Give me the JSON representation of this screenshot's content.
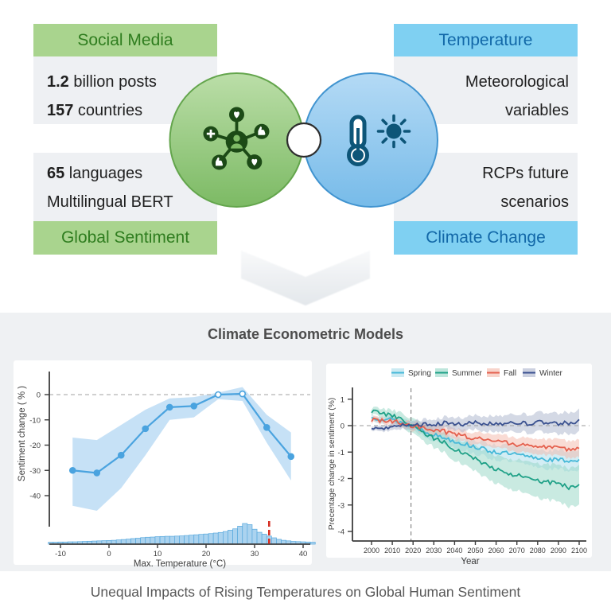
{
  "top": {
    "left": {
      "header": "Social Media",
      "footer": "Global Sentiment",
      "accent_bg": "#a9d48e",
      "accent_text": "#2f7d1f",
      "stats_box1": [
        {
          "strong": "1.2",
          "rest": " billion posts"
        },
        {
          "strong": "157",
          "rest": " countries"
        }
      ],
      "stats_box2": [
        {
          "strong": "65",
          "rest": " languages"
        },
        {
          "strong": "",
          "rest": "Multilingual BERT"
        }
      ],
      "icon": "social-network-icon"
    },
    "right": {
      "header": "Temperature",
      "footer": "Climate Change",
      "accent_bg": "#7fd0f2",
      "accent_text": "#1268a8",
      "stats_box1": [
        "Meteorological",
        "variables"
      ],
      "stats_box2": [
        "RCPs future",
        "scenarios"
      ],
      "icon": "thermometer-sun-icon"
    }
  },
  "models": {
    "title": "Climate Econometric Models"
  },
  "caption": {
    "text": "Unequal Impacts of Rising Temperatures on Global Human Sentiment"
  },
  "chart_data": [
    {
      "type": "line",
      "name": "sentiment-vs-temperature",
      "xlabel": "Max. Temperature (°C)",
      "ylabel": "Sentiment change ( % )",
      "x": [
        -7.5,
        -2.5,
        2.5,
        7.5,
        12.5,
        17.5,
        22.5,
        27.5,
        32.5,
        37.5
      ],
      "values": [
        -30,
        -31,
        -24,
        -13.5,
        -5,
        -4.5,
        0,
        0.3,
        -13,
        -24.5
      ],
      "band_upper": [
        -17,
        -18,
        -12,
        -6,
        -1.5,
        -1,
        0.8,
        3,
        -8,
        -15
      ],
      "band_lower": [
        -44,
        -46,
        -37,
        -24,
        -10,
        -9,
        -1.8,
        -2.5,
        -19,
        -34
      ],
      "open_marker_x": [
        22.5,
        27.5
      ],
      "xticks": [
        -10,
        0,
        10,
        20,
        30,
        40
      ],
      "yticks": [
        0,
        -10,
        -20,
        -30,
        -40
      ],
      "xlim": [
        -12.5,
        42.5
      ],
      "reference_line_y": 0,
      "threshold_line_x": 33,
      "histogram": {
        "x0": -12,
        "bin_width": 1,
        "heights": [
          0.02,
          0.02,
          0.03,
          0.03,
          0.04,
          0.04,
          0.05,
          0.06,
          0.07,
          0.08,
          0.09,
          0.1,
          0.11,
          0.12,
          0.14,
          0.16,
          0.18,
          0.21,
          0.23,
          0.26,
          0.28,
          0.29,
          0.31,
          0.32,
          0.33,
          0.33,
          0.34,
          0.35,
          0.37,
          0.39,
          0.41,
          0.43,
          0.45,
          0.47,
          0.5,
          0.53,
          0.58,
          0.65,
          0.72,
          0.86,
          1.0,
          0.94,
          0.7,
          0.54,
          0.44,
          0.34,
          0.25,
          0.17,
          0.12,
          0.09,
          0.06,
          0.05,
          0.04,
          0.03,
          0.02
        ]
      },
      "colors": {
        "line": "#4aa3df",
        "band": "#bcdcf4",
        "hist_fill": "#abd3ef",
        "hist_stroke": "#57a8dd",
        "threshold": "#d62f23"
      }
    },
    {
      "type": "line",
      "name": "seasonal-sentiment-projection",
      "xlabel": "Year",
      "ylabel": "Precentage change in sentiment (%)",
      "x_anchors": [
        2000,
        2005,
        2010,
        2015,
        2020,
        2025,
        2030,
        2035,
        2040,
        2045,
        2050,
        2055,
        2060,
        2065,
        2070,
        2075,
        2080,
        2085,
        2090,
        2095,
        2100
      ],
      "series": [
        {
          "name": "Spring",
          "color": "#45b8d8",
          "band_color": "#a8dcea",
          "band_start": 0.1,
          "band_end": 0.38,
          "values": [
            0.3,
            0.28,
            0.22,
            0.12,
            -0.02,
            -0.18,
            -0.35,
            -0.45,
            -0.58,
            -0.7,
            -0.8,
            -0.92,
            -1.0,
            -1.05,
            -1.1,
            -1.18,
            -1.22,
            -1.28,
            -1.3,
            -1.32,
            -1.3
          ]
        },
        {
          "name": "Summer",
          "color": "#1fa187",
          "band_color": "#93d6c4",
          "band_start": 0.12,
          "band_end": 0.75,
          "values": [
            0.55,
            0.48,
            0.38,
            0.18,
            -0.03,
            -0.25,
            -0.48,
            -0.65,
            -0.88,
            -1.05,
            -1.25,
            -1.45,
            -1.65,
            -1.78,
            -1.88,
            -2.0,
            -2.1,
            -2.15,
            -2.2,
            -2.33,
            -2.28
          ]
        },
        {
          "name": "Fall",
          "color": "#e4604e",
          "band_color": "#f3b7a9",
          "band_start": 0.1,
          "band_end": 0.33,
          "values": [
            0.22,
            0.18,
            0.15,
            0.1,
            0.0,
            -0.08,
            -0.15,
            -0.22,
            -0.32,
            -0.4,
            -0.47,
            -0.52,
            -0.6,
            -0.65,
            -0.7,
            -0.75,
            -0.8,
            -0.84,
            -0.86,
            -0.9,
            -0.9
          ]
        },
        {
          "name": "Winter",
          "color": "#39508f",
          "band_color": "#aab3cc",
          "band_start": 0.08,
          "band_end": 0.42,
          "values": [
            -0.1,
            -0.12,
            -0.02,
            0.04,
            0.0,
            0.03,
            0.02,
            0.1,
            0.04,
            0.08,
            0.1,
            0.06,
            0.1,
            0.08,
            0.1,
            0.08,
            0.14,
            0.1,
            0.08,
            0.12,
            0.15
          ]
        }
      ],
      "xticks": [
        2000,
        2010,
        2020,
        2030,
        2040,
        2050,
        2060,
        2070,
        2080,
        2090,
        2100
      ],
      "yticks": [
        1,
        0,
        -1,
        -2,
        -3,
        -4
      ],
      "vline_x": 2019,
      "hline_y": 0,
      "legend_position": "top"
    }
  ]
}
